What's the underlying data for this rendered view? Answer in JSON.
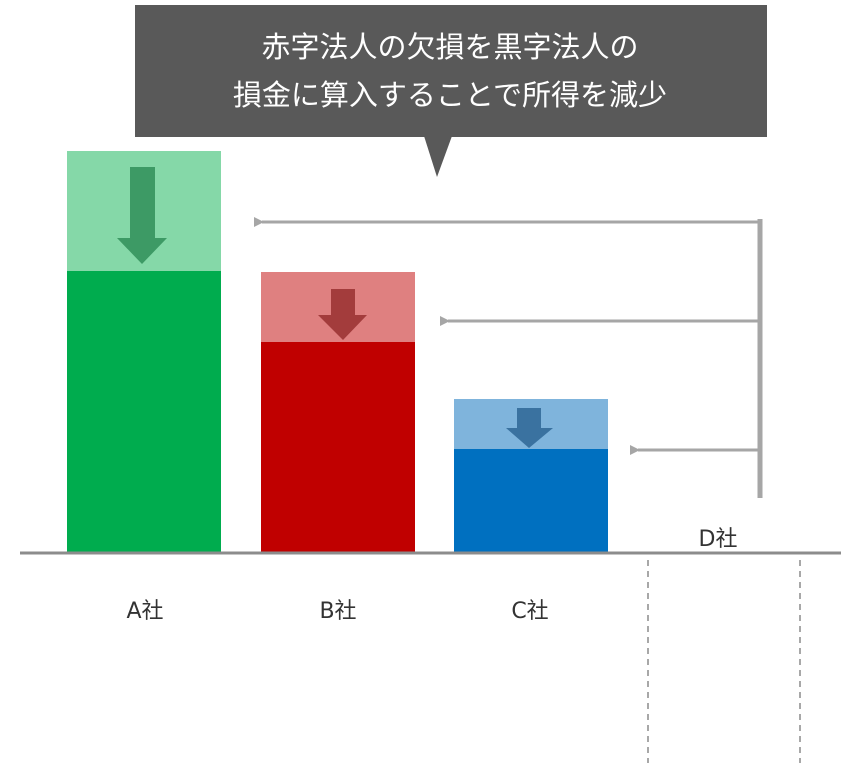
{
  "callout": {
    "lines": [
      "赤字法人の欠損を黒字法人の",
      "損金に算入することで所得を減少"
    ]
  },
  "companies": [
    {
      "label": "A社"
    },
    {
      "label": "B社"
    },
    {
      "label": "C社"
    },
    {
      "label": "D社"
    }
  ]
}
